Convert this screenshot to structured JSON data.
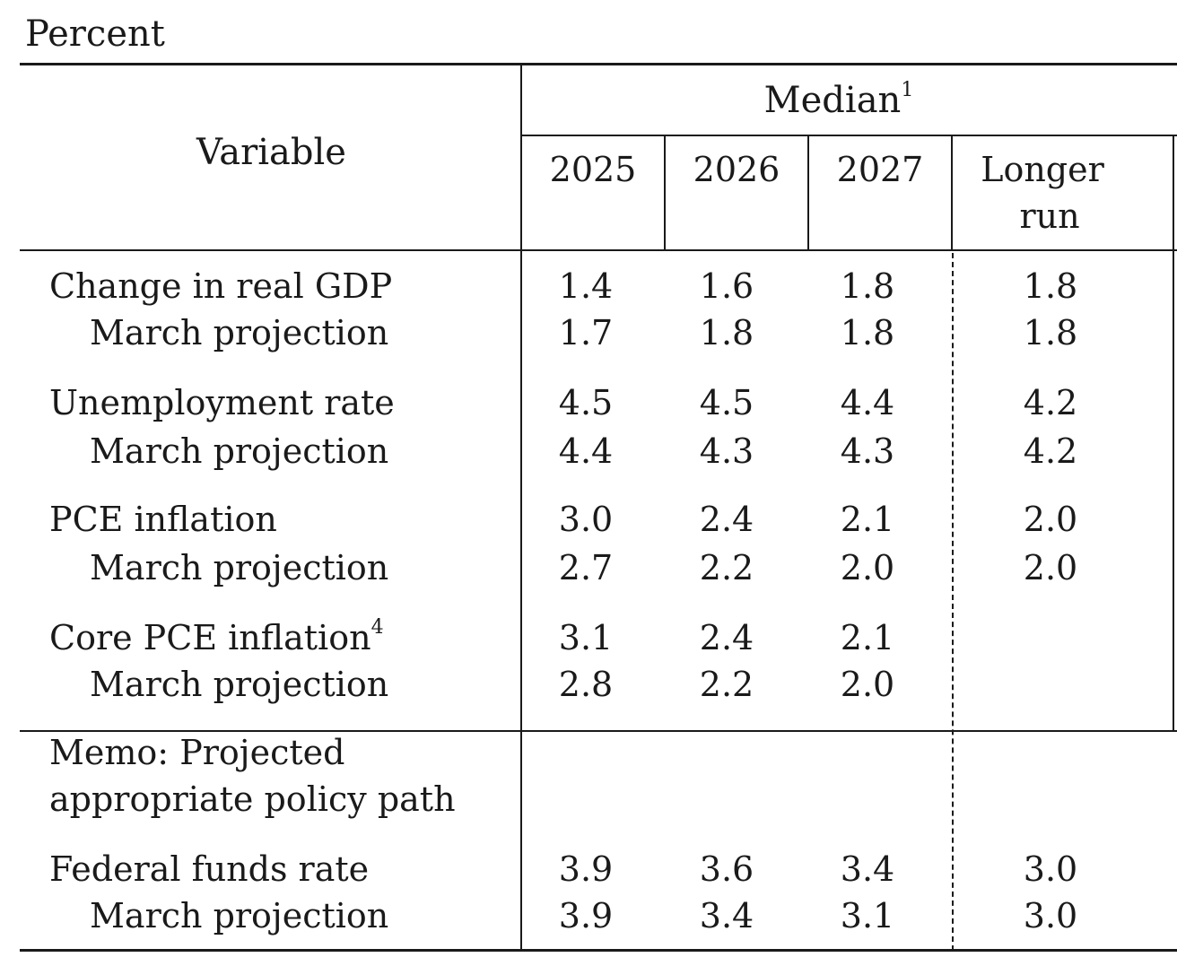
{
  "units_label": "Percent",
  "header": {
    "variable": "Variable",
    "group": "Median",
    "group_footnote": "1",
    "columns": [
      "2025",
      "2026",
      "2027",
      "Longer",
      "run"
    ]
  },
  "rows": [
    {
      "label": "Change in real GDP",
      "values": [
        "1.4",
        "1.6",
        "1.8",
        "1.8"
      ]
    },
    {
      "label": "March projection",
      "values": [
        "1.7",
        "1.8",
        "1.8",
        "1.8"
      ]
    },
    {
      "label": "Unemployment rate",
      "values": [
        "4.5",
        "4.5",
        "4.4",
        "4.2"
      ]
    },
    {
      "label": "March projection",
      "values": [
        "4.4",
        "4.3",
        "4.3",
        "4.2"
      ]
    },
    {
      "label": "PCE inflation",
      "values": [
        "3.0",
        "2.4",
        "2.1",
        "2.0"
      ]
    },
    {
      "label": "March projection",
      "values": [
        "2.7",
        "2.2",
        "2.0",
        "2.0"
      ]
    },
    {
      "label": "Core PCE inflation",
      "footnote": "4",
      "values": [
        "3.1",
        "2.4",
        "2.1",
        ""
      ]
    },
    {
      "label": "March projection",
      "values": [
        "2.8",
        "2.2",
        "2.0",
        ""
      ]
    }
  ],
  "memo": {
    "line1": "Memo: Projected",
    "line2": "appropriate policy path"
  },
  "memo_rows": [
    {
      "label": "Federal funds rate",
      "values": [
        "3.9",
        "3.6",
        "3.4",
        "3.0"
      ]
    },
    {
      "label": "March projection",
      "values": [
        "3.9",
        "3.4",
        "3.1",
        "3.0"
      ]
    }
  ]
}
